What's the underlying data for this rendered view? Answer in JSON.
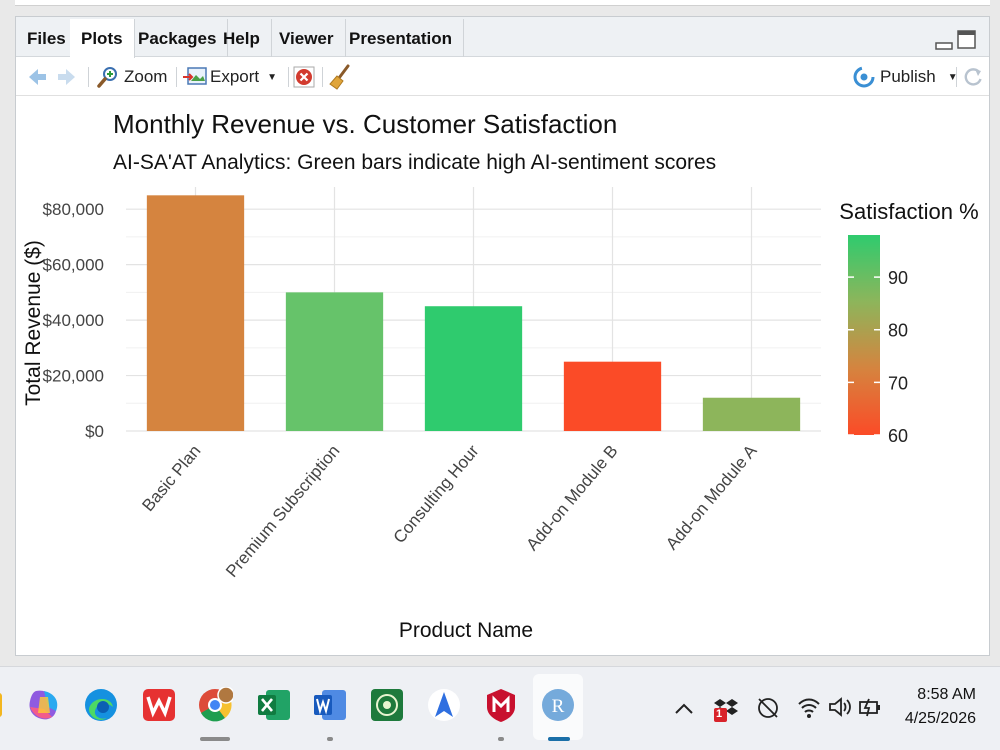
{
  "tabs": [
    {
      "label": "Files"
    },
    {
      "label": "Plots"
    },
    {
      "label": "Packages"
    },
    {
      "label": "Help"
    },
    {
      "label": "Viewer"
    },
    {
      "label": "Presentation"
    }
  ],
  "toolbar": {
    "zoom_label": "Zoom",
    "export_label": "Export",
    "publish_label": "Publish"
  },
  "chart_data": {
    "type": "bar",
    "title": "Monthly Revenue vs. Customer Satisfaction",
    "subtitle": "AI-SA'AT Analytics: Green bars indicate high AI-sentiment scores",
    "xlabel": "Product Name",
    "ylabel": "Total Revenue ($)",
    "categories": [
      "Basic Plan",
      "Premium Subscription",
      "Consulting Hour",
      "Add-on Module B",
      "Add-on Module A"
    ],
    "values": [
      85000,
      50000,
      45000,
      25000,
      12000
    ],
    "satisfaction": [
      72,
      92,
      98,
      60,
      86
    ],
    "bar_colors": [
      "#d5843f",
      "#66c36a",
      "#2fcb6e",
      "#fb4b27",
      "#8db55b"
    ],
    "ylim": [
      0,
      88000
    ],
    "yticks": [
      0,
      20000,
      40000,
      60000,
      80000
    ],
    "ytick_labels": [
      "$0",
      "$20,000",
      "$40,000",
      "$60,000",
      "$80,000"
    ],
    "legend": {
      "title": "Satisfaction %",
      "ticks": [
        60,
        70,
        80,
        90
      ],
      "range": [
        60,
        98
      ],
      "colors": [
        "#fb4b27",
        "#d5843f",
        "#8db55b",
        "#2fcb6e"
      ],
      "position": "right"
    },
    "grid": true
  },
  "taskbar": {
    "time": "8:58 AM",
    "date": "4/25/2026",
    "badge_count": "1"
  }
}
